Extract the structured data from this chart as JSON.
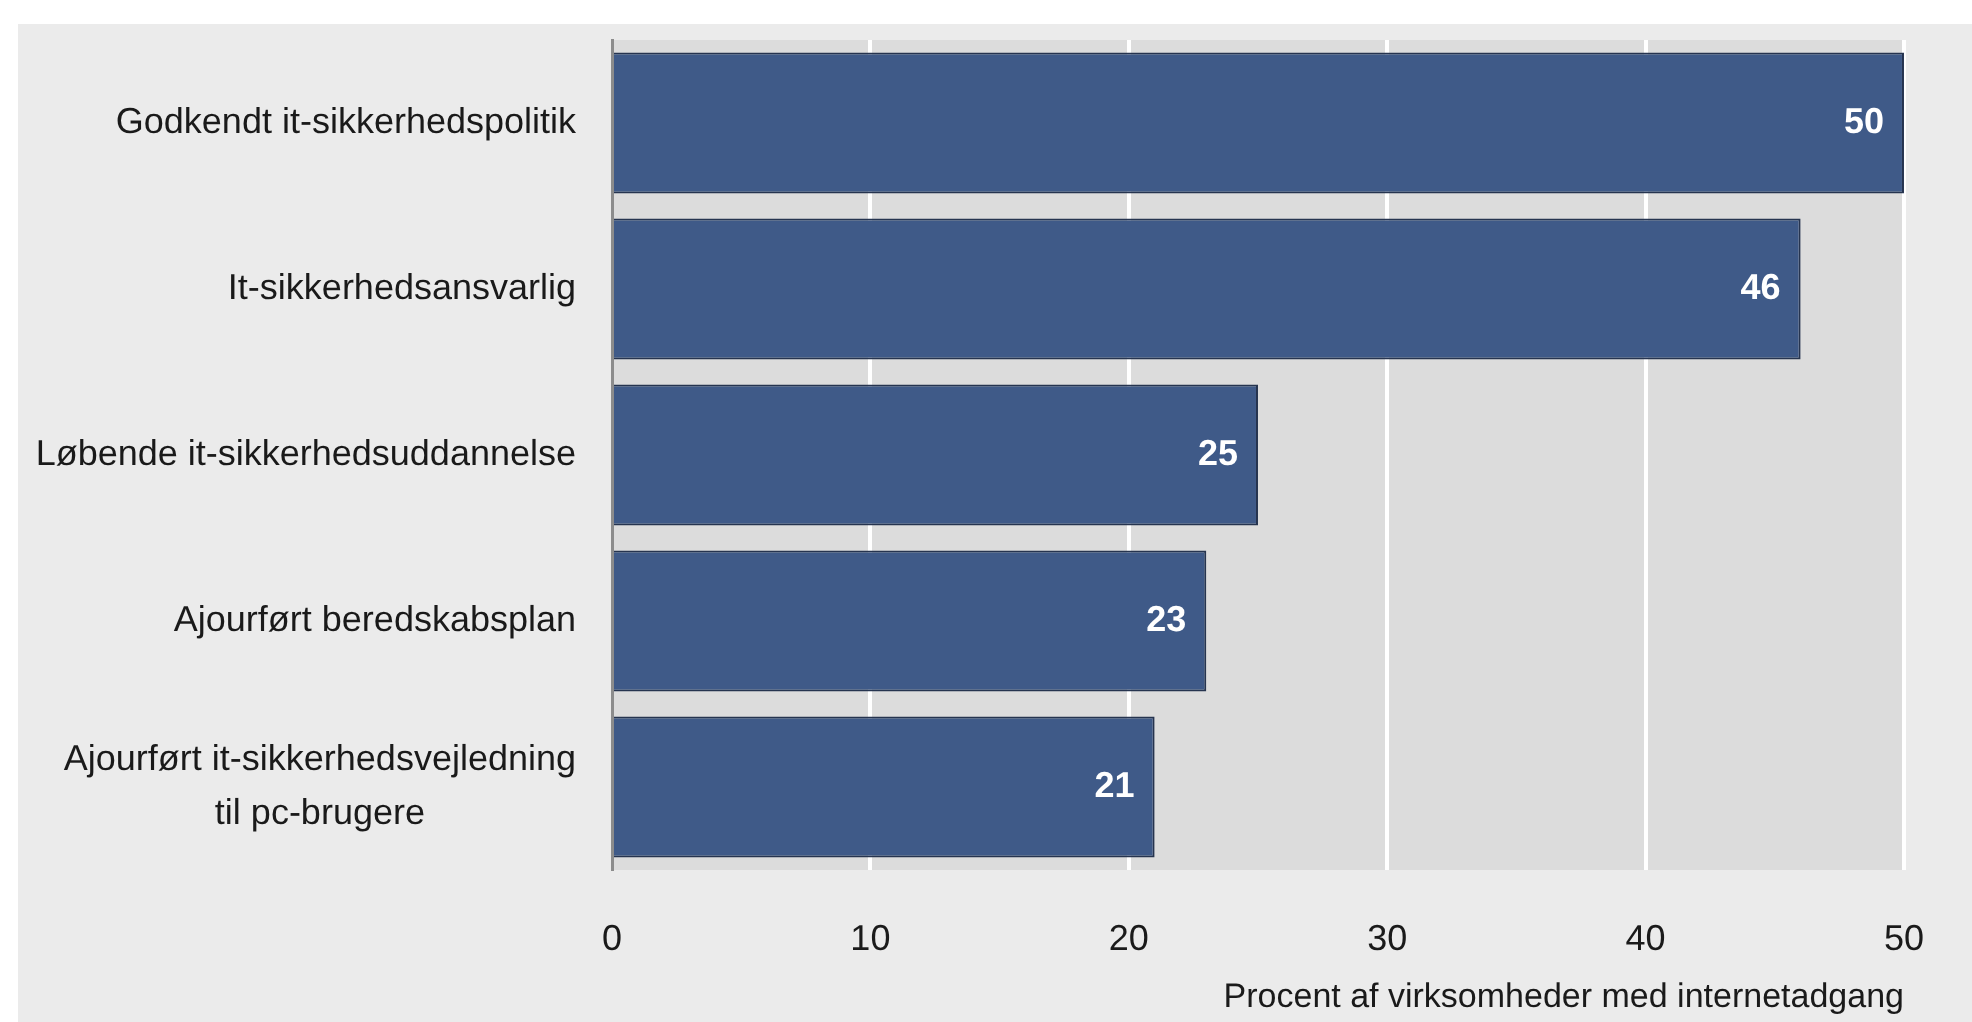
{
  "chart_data": {
    "type": "bar",
    "orientation": "horizontal",
    "categories": [
      "Godkendt it-sikkerhedspolitik",
      "It-sikkerhedsansvarlig",
      "Løbende it-sikkerhedsuddannelse",
      "Ajourført beredskabsplan",
      "Ajourført it-sikkerhedsvejledning til pc-brugere"
    ],
    "values": [
      50,
      46,
      25,
      23,
      21
    ],
    "color": "#3f5a88",
    "xlim": [
      0,
      50
    ],
    "xticks": [
      0,
      10,
      20,
      30,
      40,
      50
    ],
    "xlabel": "Procent af virksomheder med internetadgang",
    "data_labels": true,
    "grid": "x"
  }
}
